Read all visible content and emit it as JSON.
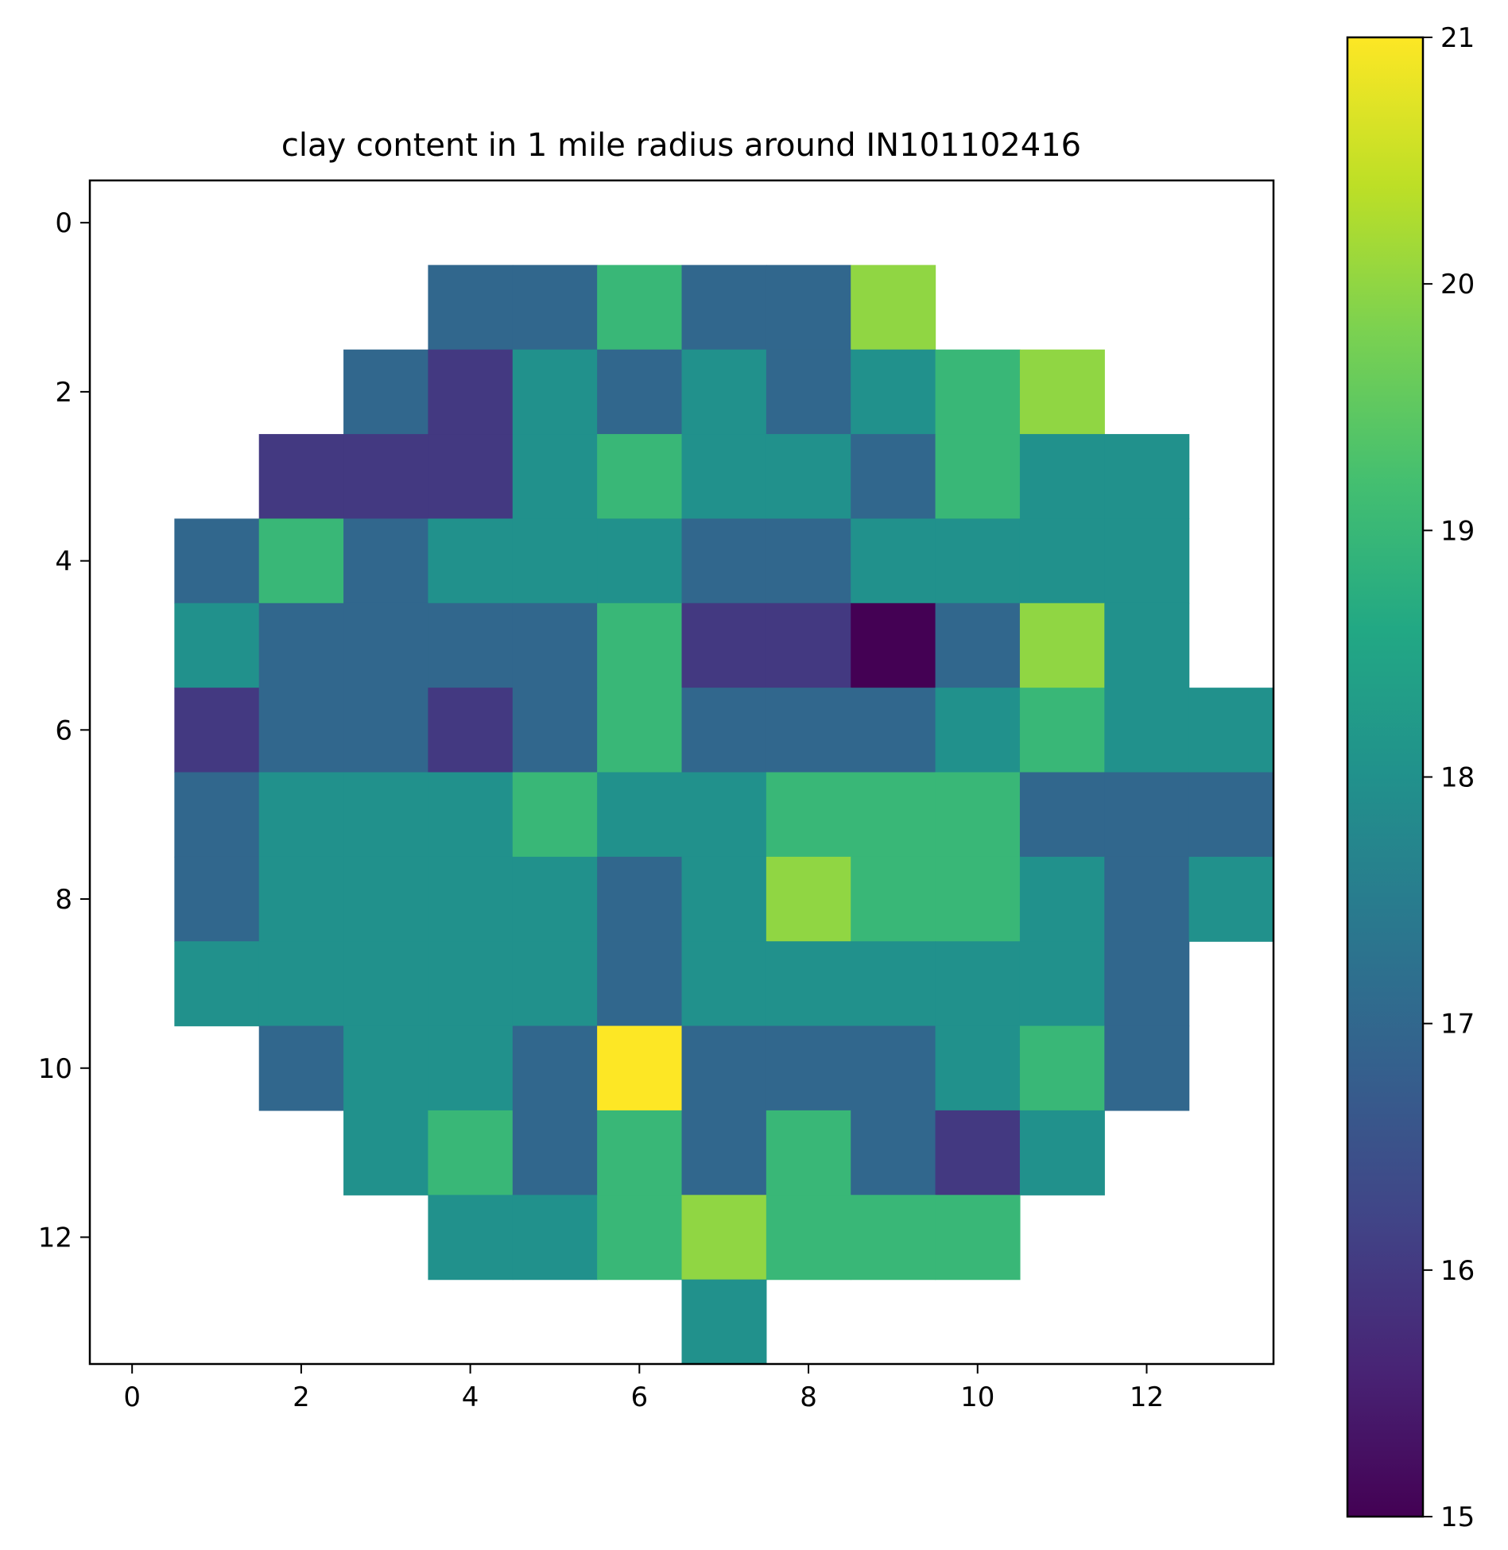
{
  "chart_data": {
    "type": "heatmap",
    "title": "clay content in 1 mile radius around IN101102416",
    "xlabel": "",
    "ylabel": "",
    "rows": 14,
    "cols": 14,
    "x_ticks": [
      0,
      2,
      4,
      6,
      8,
      10,
      12
    ],
    "y_ticks": [
      0,
      2,
      4,
      6,
      8,
      10,
      12
    ],
    "colorbar": {
      "min": 15,
      "max": 21,
      "ticks": [
        15,
        16,
        17,
        18,
        19,
        20,
        21
      ],
      "colormap": "viridis"
    },
    "values": [
      [
        null,
        null,
        null,
        null,
        null,
        null,
        null,
        null,
        null,
        null,
        null,
        null,
        null,
        null
      ],
      [
        null,
        null,
        null,
        null,
        17,
        17,
        19,
        17,
        17,
        20,
        null,
        null,
        null,
        null
      ],
      [
        null,
        null,
        null,
        17,
        16,
        18,
        17,
        18,
        17,
        18,
        19,
        20,
        null,
        null
      ],
      [
        null,
        null,
        16,
        16,
        16,
        18,
        19,
        18,
        18,
        17,
        19,
        18,
        18,
        null
      ],
      [
        null,
        17,
        19,
        17,
        18,
        18,
        18,
        17,
        17,
        18,
        18,
        18,
        18,
        null
      ],
      [
        null,
        18,
        17,
        17,
        17,
        17,
        19,
        16,
        16,
        15,
        17,
        20,
        18,
        null
      ],
      [
        null,
        16,
        17,
        17,
        16,
        17,
        19,
        17,
        17,
        17,
        18,
        19,
        18,
        18
      ],
      [
        null,
        17,
        18,
        18,
        18,
        19,
        18,
        18,
        19,
        19,
        19,
        17,
        17,
        17
      ],
      [
        null,
        17,
        18,
        18,
        18,
        18,
        17,
        18,
        20,
        19,
        19,
        18,
        17,
        18
      ],
      [
        null,
        18,
        18,
        18,
        18,
        18,
        17,
        18,
        18,
        18,
        18,
        18,
        17,
        null
      ],
      [
        null,
        null,
        17,
        18,
        18,
        17,
        21,
        17,
        17,
        17,
        18,
        19,
        17,
        null
      ],
      [
        null,
        null,
        null,
        18,
        19,
        17,
        19,
        17,
        19,
        17,
        16,
        18,
        null,
        null
      ],
      [
        null,
        null,
        null,
        null,
        18,
        18,
        19,
        20,
        19,
        19,
        19,
        null,
        null,
        null
      ],
      [
        null,
        null,
        null,
        null,
        null,
        null,
        null,
        18,
        null,
        null,
        null,
        null,
        null,
        null
      ]
    ]
  }
}
